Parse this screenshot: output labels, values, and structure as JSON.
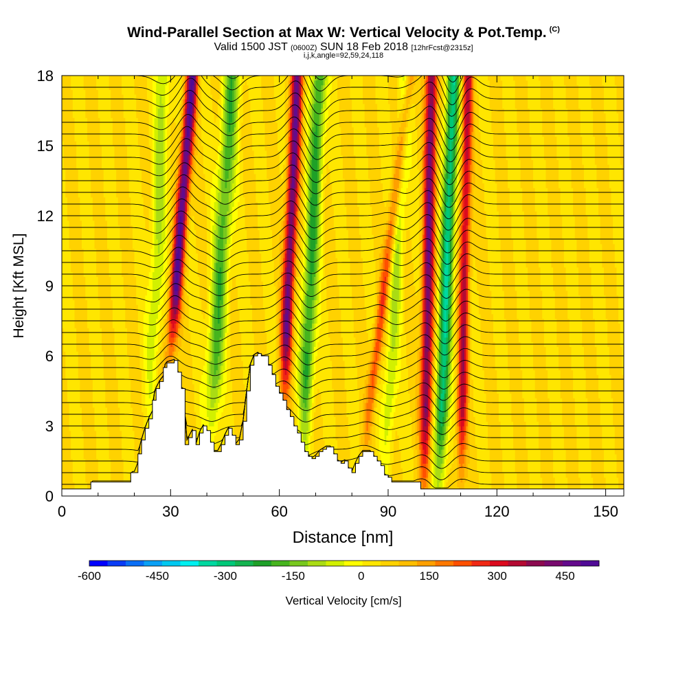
{
  "header": {
    "title": "Wind-Parallel Section at Max W: Vertical Velocity & Pot.Temp.",
    "title_mark": "(C)",
    "valid_prefix": "Valid 1500 JST",
    "valid_utc": "(0600Z)",
    "valid_date": "SUN 18 Feb 2018",
    "forecast": "[12hrFcst@2315z]",
    "indices": "i,j,k,angle=92,59,24,118"
  },
  "chart_data": {
    "type": "heatmap",
    "xlabel": "Distance [nm]",
    "ylabel": "Height [Kft MSL]",
    "xlim": [
      0,
      155
    ],
    "ylim": [
      0,
      18
    ],
    "xticks": [
      0,
      30,
      60,
      90,
      120,
      150
    ],
    "yticks": [
      0,
      3,
      6,
      9,
      12,
      15,
      18
    ],
    "colorbar": {
      "label": "Vertical Velocity [cm/s]",
      "min": -600,
      "max": 525,
      "step": 37.5,
      "tick_values": [
        -600,
        -450,
        -300,
        -150,
        0,
        150,
        300,
        450
      ],
      "tick_labels": [
        "-600",
        "-450",
        "-300",
        "-150",
        "0",
        "150",
        "300",
        "450"
      ],
      "colors": [
        "#0000ff",
        "#0a3cf5",
        "#0a6ef5",
        "#0aa0f5",
        "#00c8f0",
        "#00f0f0",
        "#00d8a0",
        "#00c878",
        "#14b450",
        "#1ea028",
        "#46b41e",
        "#78c81e",
        "#aadc14",
        "#d2f000",
        "#ffff00",
        "#ffe600",
        "#ffd200",
        "#ffbe00",
        "#ffa000",
        "#ff7800",
        "#ff5000",
        "#f02814",
        "#dc0a1e",
        "#b40a32",
        "#8c0a50",
        "#780a6e",
        "#640a8c",
        "#500a96"
      ]
    },
    "updraft_bands": [
      {
        "x_surface": 27,
        "x_top": 36,
        "peak_w": 420,
        "half_width_nm": 1.6
      },
      {
        "x_surface": 60,
        "x_top": 65,
        "peak_w": 380,
        "half_width_nm": 1.6
      },
      {
        "x_surface": 82,
        "x_top": 96,
        "peak_w": 180,
        "half_width_nm": 1.4
      },
      {
        "x_surface": 100,
        "x_top": 102,
        "peak_w": 360,
        "half_width_nm": 1.6
      },
      {
        "x_surface": 110,
        "x_top": 112,
        "peak_w": 280,
        "half_width_nm": 1.4
      }
    ],
    "downdraft_bands": [
      {
        "x_surface": 24,
        "x_top": 28,
        "peak_w": -120,
        "half_width_nm": 2.0
      },
      {
        "x_surface": 40,
        "x_top": 47,
        "peak_w": -210,
        "half_width_nm": 2.3
      },
      {
        "x_surface": 66,
        "x_top": 71,
        "peak_w": -240,
        "half_width_nm": 2.0
      },
      {
        "x_surface": 89,
        "x_top": 95,
        "peak_w": -120,
        "half_width_nm": 1.8
      },
      {
        "x_surface": 104,
        "x_top": 108,
        "peak_w": -330,
        "half_width_nm": 1.8
      }
    ],
    "terrain": [
      [
        0,
        0.3
      ],
      [
        8,
        0.3
      ],
      [
        8,
        0.6
      ],
      [
        19,
        0.6
      ],
      [
        19,
        1.0
      ],
      [
        20,
        1.0
      ],
      [
        21,
        1.4
      ],
      [
        21,
        1.8
      ],
      [
        22,
        2.4
      ],
      [
        23,
        2.9
      ],
      [
        24,
        3.3
      ],
      [
        25,
        3.6
      ],
      [
        25,
        4.1
      ],
      [
        26,
        4.6
      ],
      [
        27,
        4.9
      ],
      [
        28,
        5.1
      ],
      [
        28,
        5.5
      ],
      [
        29,
        5.7
      ],
      [
        31,
        5.8
      ],
      [
        32,
        5.3
      ],
      [
        33,
        4.6
      ],
      [
        34,
        3.4
      ],
      [
        34,
        2.2
      ],
      [
        35,
        2.5
      ],
      [
        36,
        2.8
      ],
      [
        37,
        2.2
      ],
      [
        38,
        2.7
      ],
      [
        39,
        3.0
      ],
      [
        40,
        2.8
      ],
      [
        41,
        2.3
      ],
      [
        42,
        1.9
      ],
      [
        43,
        1.9
      ],
      [
        44,
        2.2
      ],
      [
        45,
        2.6
      ],
      [
        46,
        2.9
      ],
      [
        47,
        2.6
      ],
      [
        48,
        2.2
      ],
      [
        49,
        2.4
      ],
      [
        50,
        3.2
      ],
      [
        51,
        4.5
      ],
      [
        52,
        5.6
      ],
      [
        53,
        6.0
      ],
      [
        54,
        6.1
      ],
      [
        55,
        6.0
      ],
      [
        57,
        5.6
      ],
      [
        58,
        5.2
      ],
      [
        59,
        4.7
      ],
      [
        60,
        4.4
      ],
      [
        61,
        4.1
      ],
      [
        62,
        3.7
      ],
      [
        63,
        3.4
      ],
      [
        64,
        3.0
      ],
      [
        65,
        2.7
      ],
      [
        66,
        2.3
      ],
      [
        67,
        1.9
      ],
      [
        68,
        1.7
      ],
      [
        69,
        1.6
      ],
      [
        70,
        1.7
      ],
      [
        71,
        1.9
      ],
      [
        72,
        2.0
      ],
      [
        73,
        2.1
      ],
      [
        74,
        2.1
      ],
      [
        75,
        1.8
      ],
      [
        76,
        1.5
      ],
      [
        77,
        1.4
      ],
      [
        78,
        1.5
      ],
      [
        79,
        1.2
      ],
      [
        80,
        1.0
      ],
      [
        81,
        1.4
      ],
      [
        82,
        1.7
      ],
      [
        83,
        1.9
      ],
      [
        85,
        1.9
      ],
      [
        86,
        1.7
      ],
      [
        87,
        1.5
      ],
      [
        88,
        1.3
      ],
      [
        89,
        0.9
      ],
      [
        90,
        0.8
      ],
      [
        91,
        0.6
      ],
      [
        99,
        0.6
      ],
      [
        99,
        0.3
      ],
      [
        155,
        0.3
      ]
    ],
    "theta_isolines": {
      "count": 38,
      "lowest_kft": 0.5,
      "highest_kft": 19.0
    }
  }
}
